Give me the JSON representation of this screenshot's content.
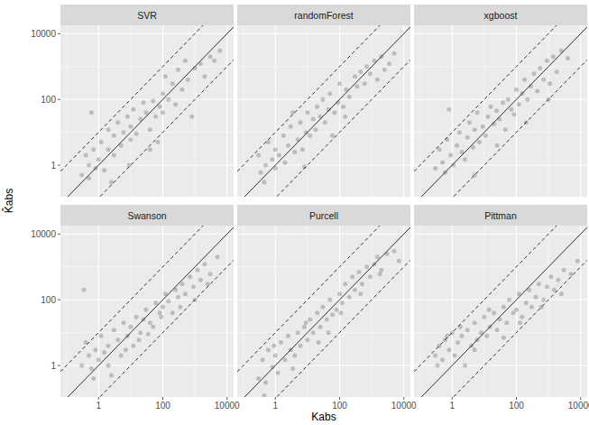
{
  "axes": {
    "x_label": "Kabs",
    "y_label": "K̂abs"
  },
  "chart_data": [
    {
      "type": "scatter",
      "title": "SVR",
      "log": true,
      "grid": true,
      "color": "#000000",
      "marker": "circle",
      "xlim": [
        0.065,
        16000
      ],
      "ylim": [
        0.11,
        18000
      ],
      "xticks": [
        1,
        100,
        10000
      ],
      "yticks": [
        1,
        100,
        10000
      ],
      "ref_lines": [
        {
          "ratio": 0.1,
          "line_style": "dashed"
        },
        {
          "ratio": 1,
          "line_style": "solid"
        },
        {
          "ratio": 10,
          "line_style": "dashed"
        }
      ],
      "x": [
        0.3,
        0.4,
        0.5,
        0.5,
        0.7,
        0.8,
        1,
        1.2,
        1.5,
        2,
        2,
        3,
        3,
        4,
        5,
        6,
        8,
        10,
        10,
        12,
        15,
        20,
        25,
        30,
        40,
        50,
        60,
        80,
        100,
        100,
        120,
        150,
        200,
        250,
        300,
        400,
        500,
        600,
        800,
        1000,
        1500,
        2000,
        3000,
        4000,
        6000,
        0.6,
        2.5,
        40,
        9,
        70
      ],
      "values": [
        0.5,
        2,
        1,
        0.4,
        3,
        0.8,
        1.5,
        5,
        0.7,
        3,
        12,
        2,
        8,
        20,
        4,
        10,
        30,
        6,
        15,
        50,
        9,
        25,
        80,
        40,
        12,
        90,
        30,
        60,
        150,
        40,
        500,
        100,
        300,
        70,
        800,
        200,
        1500,
        400,
        30,
        900,
        1200,
        500,
        2000,
        1500,
        3000,
        40,
        0.3,
        3,
        1,
        5
      ]
    },
    {
      "type": "scatter",
      "title": "randomForest",
      "log": true,
      "grid": true,
      "color": "#000000",
      "marker": "circle",
      "xlim": [
        0.065,
        16000
      ],
      "ylim": [
        0.11,
        18000
      ],
      "xticks": [
        1,
        100,
        10000
      ],
      "yticks": [
        1,
        100,
        10000
      ],
      "ref_lines": [
        {
          "ratio": 0.1,
          "line_style": "dashed"
        },
        {
          "ratio": 1,
          "line_style": "solid"
        },
        {
          "ratio": 10,
          "line_style": "dashed"
        }
      ],
      "x": [
        0.3,
        0.35,
        0.5,
        0.6,
        0.8,
        1,
        1,
        1.3,
        1.8,
        2,
        2.5,
        3,
        4,
        5,
        6,
        7,
        9,
        10,
        12,
        15,
        18,
        20,
        25,
        30,
        35,
        45,
        50,
        70,
        90,
        100,
        130,
        160,
        200,
        300,
        350,
        450,
        600,
        700,
        900,
        1200,
        1500,
        2000,
        2500,
        3500,
        5000,
        0.45,
        3.5,
        60,
        150,
        8
      ],
      "values": [
        2,
        0.6,
        1,
        5,
        1.5,
        0.8,
        3,
        2,
        8,
        1.2,
        4,
        15,
        2.5,
        6,
        20,
        3,
        10,
        40,
        8,
        25,
        12,
        60,
        30,
        100,
        20,
        50,
        150,
        40,
        80,
        300,
        60,
        200,
        120,
        500,
        250,
        700,
        300,
        1000,
        600,
        1500,
        400,
        2000,
        800,
        1200,
        2500,
        0.3,
        40,
        8,
        30,
        0.9
      ]
    },
    {
      "type": "scatter",
      "title": "xgboost",
      "log": true,
      "grid": true,
      "color": "#000000",
      "marker": "circle",
      "xlim": [
        0.065,
        16000
      ],
      "ylim": [
        0.11,
        18000
      ],
      "xticks": [
        1,
        100,
        10000
      ],
      "yticks": [
        1,
        100,
        10000
      ],
      "ref_lines": [
        {
          "ratio": 0.1,
          "line_style": "dashed"
        },
        {
          "ratio": 1,
          "line_style": "solid"
        },
        {
          "ratio": 10,
          "line_style": "dashed"
        }
      ],
      "x": [
        0.3,
        0.4,
        0.5,
        0.6,
        0.7,
        0.9,
        1.1,
        1.4,
        1.7,
        2,
        2.5,
        3,
        3.5,
        4.5,
        5,
        6,
        7,
        9,
        11,
        13,
        16,
        20,
        24,
        30,
        38,
        45,
        55,
        70,
        85,
        100,
        120,
        150,
        180,
        220,
        280,
        350,
        450,
        550,
        700,
        900,
        1100,
        1400,
        1800,
        2500,
        4000,
        0.8,
        5,
        25,
        200,
        1000
      ],
      "values": [
        0.8,
        3,
        1.2,
        0.6,
        6,
        2,
        1,
        4,
        10,
        2.5,
        1.5,
        7,
        20,
        3.5,
        12,
        40,
        5,
        15,
        8,
        30,
        60,
        18,
        45,
        25,
        80,
        12,
        100,
        50,
        35,
        200,
        70,
        150,
        400,
        100,
        250,
        600,
        180,
        900,
        400,
        1500,
        300,
        2000,
        700,
        3000,
        1800,
        50,
        0.5,
        4,
        20,
        100
      ]
    },
    {
      "type": "scatter",
      "title": "Swanson",
      "log": true,
      "grid": true,
      "color": "#000000",
      "marker": "circle",
      "xlim": [
        0.065,
        16000
      ],
      "ylim": [
        0.11,
        18000
      ],
      "xticks": [
        1,
        100,
        10000
      ],
      "yticks": [
        1,
        100,
        10000
      ],
      "ref_lines": [
        {
          "ratio": 0.1,
          "line_style": "dashed"
        },
        {
          "ratio": 1,
          "line_style": "solid"
        },
        {
          "ratio": 10,
          "line_style": "dashed"
        }
      ],
      "x": [
        0.3,
        0.4,
        0.5,
        0.6,
        0.8,
        1,
        1.2,
        1.5,
        2,
        2.5,
        3,
        4,
        5,
        6,
        8,
        10,
        12,
        15,
        20,
        25,
        30,
        40,
        50,
        60,
        80,
        100,
        120,
        150,
        200,
        250,
        300,
        400,
        500,
        700,
        900,
        1200,
        1500,
        2000,
        3000,
        5000,
        0.35,
        0.7,
        2,
        7,
        18,
        35,
        90,
        350,
        1000,
        2500
      ],
      "values": [
        1,
        5,
        2,
        0.8,
        3,
        1.5,
        8,
        2.5,
        4,
        0.5,
        12,
        6,
        2,
        20,
        8,
        15,
        4,
        30,
        10,
        25,
        50,
        20,
        15,
        80,
        40,
        60,
        150,
        90,
        40,
        200,
        120,
        300,
        150,
        500,
        250,
        800,
        400,
        1200,
        600,
        2000,
        200,
        0.4,
        1,
        3,
        6,
        9,
        30,
        60,
        100,
        300
      ]
    },
    {
      "type": "scatter",
      "title": "Purcell",
      "log": true,
      "grid": true,
      "color": "#000000",
      "marker": "circle",
      "xlim": [
        0.065,
        16000
      ],
      "ylim": [
        0.11,
        18000
      ],
      "xticks": [
        1,
        100,
        10000
      ],
      "yticks": [
        1,
        100,
        10000
      ],
      "ref_lines": [
        {
          "ratio": 0.1,
          "line_style": "dashed"
        },
        {
          "ratio": 1,
          "line_style": "solid"
        },
        {
          "ratio": 10,
          "line_style": "dashed"
        }
      ],
      "x": [
        0.3,
        0.4,
        0.5,
        0.6,
        0.8,
        1,
        1.2,
        1.5,
        2,
        2.5,
        3,
        4,
        5,
        6,
        8,
        10,
        12,
        15,
        20,
        25,
        30,
        40,
        50,
        60,
        80,
        100,
        120,
        150,
        200,
        250,
        300,
        400,
        500,
        700,
        900,
        1200,
        1500,
        2000,
        3000,
        5000,
        0.45,
        0.9,
        3.5,
        9,
        22,
        45,
        110,
        450,
        1800,
        7000
      ],
      "values": [
        0.4,
        1.5,
        0.3,
        3,
        0.9,
        2,
        0.6,
        5,
        1.5,
        8,
        3,
        2,
        10,
        4,
        15,
        6,
        25,
        10,
        40,
        15,
        60,
        25,
        100,
        35,
        50,
        150,
        80,
        300,
        120,
        500,
        200,
        700,
        300,
        1000,
        500,
        1200,
        2000,
        800,
        2500,
        3000,
        0.12,
        4,
        0.8,
        20,
        5,
        10,
        40,
        150,
        600,
        1500
      ]
    },
    {
      "type": "scatter",
      "title": "Pittman",
      "log": true,
      "grid": true,
      "color": "#000000",
      "marker": "circle",
      "xlim": [
        0.065,
        16000
      ],
      "ylim": [
        0.11,
        18000
      ],
      "xticks": [
        1,
        100,
        10000
      ],
      "yticks": [
        1,
        100,
        10000
      ],
      "ref_lines": [
        {
          "ratio": 0.1,
          "line_style": "dashed"
        },
        {
          "ratio": 1,
          "line_style": "solid"
        },
        {
          "ratio": 10,
          "line_style": "dashed"
        }
      ],
      "x": [
        0.3,
        0.4,
        0.5,
        0.6,
        0.8,
        1,
        1.2,
        1.5,
        2,
        2.5,
        3,
        4,
        5,
        6,
        8,
        10,
        12,
        15,
        20,
        25,
        30,
        40,
        50,
        60,
        80,
        100,
        120,
        150,
        200,
        250,
        300,
        400,
        500,
        700,
        900,
        1200,
        1500,
        2000,
        3000,
        5000,
        0.35,
        0.7,
        1.8,
        5,
        14,
        40,
        130,
        600,
        2500,
        8000
      ],
      "values": [
        2,
        4,
        1.5,
        6,
        3,
        10,
        2,
        5,
        8,
        1,
        12,
        4,
        20,
        6,
        10,
        30,
        8,
        15,
        40,
        12,
        25,
        60,
        20,
        100,
        40,
        50,
        150,
        30,
        80,
        200,
        60,
        120,
        300,
        100,
        250,
        500,
        200,
        400,
        800,
        600,
        1,
        8,
        15,
        3,
        50,
        7,
        20,
        60,
        150,
        1500
      ]
    }
  ]
}
